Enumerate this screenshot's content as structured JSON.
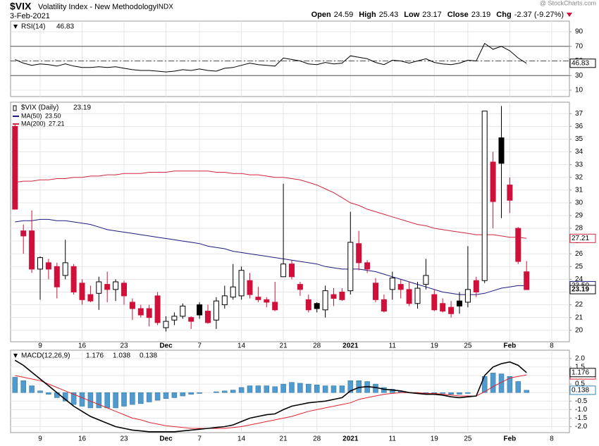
{
  "header": {
    "symbol": "$VIX",
    "name": "Volatility Index - New Methodology",
    "exchange": "INDX",
    "date": "3-Feb-2021",
    "source": "@ StockCharts.com",
    "quote": [
      {
        "label": "Open",
        "value": "24.59"
      },
      {
        "label": "High",
        "value": "25.43"
      },
      {
        "label": "Low",
        "value": "23.17"
      },
      {
        "label": "Close",
        "value": "23.19"
      },
      {
        "label": "Chg",
        "value": "-2.37 (-9.27%)"
      }
    ]
  },
  "chart_data": [
    {
      "type": "line",
      "title": "RSI(14)",
      "last": "46.83",
      "color": "#000000",
      "ylim": [
        1.3,
        104.5
      ],
      "yticks": [
        10,
        30,
        50,
        70,
        90
      ],
      "levels": [
        30,
        70
      ],
      "midline": 50,
      "values": [
        52,
        47,
        44,
        46,
        45,
        43,
        46,
        43,
        41,
        41,
        42,
        41,
        42,
        40,
        38,
        37,
        37,
        36,
        35,
        36,
        38,
        37,
        39,
        37,
        36,
        40,
        41,
        44,
        47,
        45,
        44,
        43,
        54,
        52,
        50,
        46,
        45,
        48,
        46,
        47,
        57,
        55,
        53,
        48,
        45,
        51,
        50,
        47,
        50,
        53,
        48,
        46,
        45,
        47,
        51,
        50,
        74,
        66,
        70,
        64,
        54,
        46.83,
        null,
        null,
        null
      ]
    },
    {
      "type": "candlestick",
      "title": "$VIX (Daily)",
      "last": "23.19",
      "colors": {
        "up": "#000000",
        "down": "#d0103a"
      },
      "ylim": [
        19.1,
        37.9
      ],
      "yticks": [
        20,
        21,
        22,
        23,
        24,
        25,
        26,
        27,
        28,
        29,
        30,
        31,
        32,
        33,
        34,
        35,
        36,
        37
      ],
      "categories": [
        null,
        null,
        null,
        "9",
        null,
        null,
        null,
        null,
        "16",
        null,
        null,
        null,
        null,
        "23",
        null,
        null,
        null,
        null,
        "Dec",
        null,
        null,
        null,
        "7",
        null,
        null,
        null,
        null,
        "14",
        null,
        null,
        null,
        null,
        "21",
        null,
        null,
        null,
        "28",
        null,
        null,
        null,
        "2021",
        null,
        null,
        null,
        null,
        "11",
        null,
        null,
        null,
        null,
        "19",
        null,
        null,
        null,
        "25",
        null,
        null,
        null,
        null,
        "Feb",
        null,
        null,
        null,
        null,
        "8"
      ],
      "open": [
        36.0,
        27.8,
        27.8,
        24.8,
        25.3,
        25.0,
        24.3,
        25.0,
        23.7,
        22.8,
        22.9,
        23.6,
        23.2,
        23.7,
        22.2,
        21.7,
        21.7,
        22.7,
        20.2,
        20.8,
        21.1,
        21.0,
        22.0,
        21.5,
        20.8,
        22.0,
        22.6,
        22.7,
        23.9,
        22.6,
        22.4,
        22.2,
        24.2,
        25.2,
        23.6,
        22.4,
        22.1,
        21.6,
        22.8,
        23.0,
        23.1,
        26.8,
        25.3,
        23.7,
        22.4,
        23.2,
        23.6,
        23.2,
        22.1,
        23.6,
        22.8,
        22.1,
        21.8,
        22.3,
        22.2,
        23.9,
        23.9,
        33.2,
        35.1,
        31.4,
        28.0,
        24.59,
        null,
        null,
        null
      ],
      "high": [
        36.2,
        28.3,
        29.4,
        25.8,
        25.6,
        25.3,
        27.1,
        25.2,
        24.0,
        23.5,
        24.2,
        24.6,
        24.0,
        23.9,
        22.5,
        22.0,
        22.0,
        23.0,
        21.1,
        21.4,
        22.1,
        21.1,
        22.2,
        22.0,
        22.6,
        23.5,
        25.2,
        25.0,
        24.5,
        23.4,
        22.6,
        23.8,
        31.5,
        25.5,
        23.8,
        22.8,
        22.2,
        23.5,
        23.3,
        23.3,
        29.3,
        27.8,
        25.5,
        24.1,
        22.8,
        24.6,
        24.0,
        23.8,
        23.8,
        25.6,
        23.2,
        22.5,
        22.3,
        23.0,
        26.6,
        24.2,
        37.2,
        34.0,
        37.6,
        32.0,
        28.1,
        25.43,
        null,
        null,
        null
      ],
      "low": [
        29.5,
        26.0,
        24.5,
        22.4,
        24.0,
        22.5,
        24.0,
        22.8,
        22.0,
        22.2,
        21.6,
        22.2,
        22.3,
        22.0,
        20.8,
        21.0,
        20.3,
        20.4,
        19.9,
        20.4,
        20.9,
        20.1,
        20.9,
        20.5,
        20.1,
        21.7,
        22.4,
        22.4,
        22.5,
        22.2,
        21.8,
        21.5,
        24.2,
        24.0,
        22.7,
        21.4,
        21.4,
        21.0,
        21.9,
        22.3,
        22.8,
        24.7,
        24.5,
        22.2,
        21.4,
        22.4,
        22.5,
        21.9,
        21.7,
        23.2,
        21.5,
        21.4,
        21.0,
        21.3,
        21.8,
        22.6,
        23.7,
        28.0,
        28.8,
        29.2,
        25.2,
        23.17,
        null,
        null,
        null
      ],
      "close": [
        29.5,
        27.4,
        24.8,
        25.7,
        24.8,
        23.4,
        25.3,
        23.0,
        22.4,
        22.3,
        23.8,
        23.2,
        23.8,
        22.7,
        21.7,
        21.2,
        21.0,
        20.6,
        20.7,
        21.1,
        21.9,
        20.7,
        21.2,
        20.6,
        22.3,
        22.7,
        23.4,
        24.7,
        22.8,
        22.4,
        22.2,
        21.6,
        25.2,
        24.2,
        23.2,
        21.6,
        21.7,
        23.1,
        22.5,
        22.4,
        26.9,
        25.3,
        24.8,
        22.4,
        21.5,
        24.1,
        23.2,
        22.1,
        23.3,
        24.3,
        21.6,
        21.5,
        21.3,
        21.9,
        23.2,
        23.0,
        37.2,
        30.1,
        33.1,
        30.2,
        25.4,
        23.19,
        null,
        null,
        null
      ],
      "series": [
        {
          "name": "MA(50)",
          "last": "23.50",
          "color": "#1a1a80",
          "values": [
            28.5,
            28.6,
            28.6,
            28.7,
            28.7,
            28.6,
            28.6,
            28.5,
            28.4,
            28.3,
            28.1,
            27.9,
            27.8,
            27.7,
            27.6,
            27.5,
            27.4,
            27.3,
            27.2,
            27.1,
            27.0,
            26.9,
            26.8,
            26.6,
            26.5,
            26.4,
            26.2,
            26.1,
            26.0,
            25.9,
            25.8,
            25.7,
            25.6,
            25.5,
            25.4,
            25.3,
            25.2,
            25.0,
            24.9,
            24.8,
            24.8,
            24.8,
            24.7,
            24.6,
            24.4,
            24.2,
            24.0,
            23.8,
            23.6,
            23.4,
            23.2,
            23.0,
            22.9,
            22.8,
            22.8,
            22.8,
            22.9,
            23.1,
            23.3,
            23.4,
            23.5,
            23.5,
            null,
            null,
            null
          ]
        },
        {
          "name": "MA(200)",
          "last": "27.21",
          "color": "#d0263f",
          "values": [
            31.6,
            31.7,
            31.7,
            31.8,
            31.8,
            31.9,
            31.9,
            32.0,
            32.0,
            32.1,
            32.1,
            32.2,
            32.2,
            32.3,
            32.3,
            32.3,
            32.4,
            32.4,
            32.4,
            32.5,
            32.5,
            32.5,
            32.5,
            32.5,
            32.4,
            32.4,
            32.3,
            32.3,
            32.2,
            32.2,
            32.1,
            32.0,
            32.0,
            31.9,
            31.8,
            31.6,
            31.4,
            31.1,
            30.8,
            30.4,
            30.0,
            29.8,
            29.5,
            29.3,
            29.1,
            28.9,
            28.7,
            28.5,
            28.3,
            28.2,
            28.0,
            27.9,
            27.8,
            27.7,
            27.6,
            27.5,
            27.5,
            27.5,
            27.4,
            27.3,
            27.3,
            27.21,
            null,
            null,
            null
          ]
        }
      ]
    },
    {
      "type": "macd",
      "title": "MACD(12,26,9)",
      "ylim": [
        -2.35,
        2.49
      ],
      "yticks": [
        {
          "value": 2,
          "label": "2.0"
        },
        {
          "value": 1.5,
          "label": "1.5"
        },
        {
          "value": 1,
          "label": "1.0"
        },
        {
          "value": 0.5,
          "label": "0.5"
        },
        {
          "value": 0,
          "label": "0.0"
        },
        {
          "value": -0.5,
          "label": "-0.5"
        },
        {
          "value": -1,
          "label": "-1.0"
        },
        {
          "value": -1.5,
          "label": "-1.5"
        },
        {
          "value": -2,
          "label": "-2.0"
        }
      ],
      "series": [
        {
          "name": "MACD",
          "last": "1.176",
          "color": "#000000",
          "values": [
            1.9,
            1.6,
            1.2,
            0.8,
            0.4,
            0.0,
            -0.4,
            -0.8,
            -1.1,
            -1.4,
            -1.6,
            -1.8,
            -2.0,
            -2.1,
            -2.2,
            -2.25,
            -2.3,
            -2.3,
            -2.3,
            -2.3,
            -2.25,
            -2.2,
            -2.15,
            -2.1,
            -2.05,
            -2.0,
            -1.9,
            -1.7,
            -1.5,
            -1.4,
            -1.3,
            -1.25,
            -1.0,
            -0.8,
            -0.7,
            -0.6,
            -0.55,
            -0.5,
            -0.4,
            -0.3,
            0.1,
            0.3,
            0.35,
            0.3,
            0.2,
            0.15,
            0.1,
            0.0,
            -0.05,
            -0.1,
            -0.1,
            -0.15,
            -0.25,
            -0.3,
            -0.25,
            -0.2,
            1.0,
            1.5,
            1.7,
            1.8,
            1.6,
            1.176,
            null,
            null,
            null
          ]
        },
        {
          "name": "Signal",
          "last": "1.038",
          "color": "#e0242c",
          "values": [
            1.0,
            0.9,
            0.8,
            0.7,
            0.5,
            0.3,
            0.1,
            -0.1,
            -0.3,
            -0.5,
            -0.7,
            -0.9,
            -1.1,
            -1.3,
            -1.5,
            -1.6,
            -1.75,
            -1.85,
            -1.95,
            -2.0,
            -2.05,
            -2.1,
            -2.1,
            -2.1,
            -2.1,
            -2.1,
            -2.05,
            -2.0,
            -1.9,
            -1.8,
            -1.7,
            -1.6,
            -1.5,
            -1.4,
            -1.25,
            -1.1,
            -1.0,
            -0.9,
            -0.8,
            -0.7,
            -0.6,
            -0.4,
            -0.3,
            -0.2,
            -0.1,
            -0.05,
            0.0,
            0.0,
            0.0,
            -0.05,
            -0.05,
            -0.1,
            -0.15,
            -0.2,
            -0.2,
            -0.2,
            0.05,
            0.35,
            0.6,
            0.85,
            0.95,
            1.038,
            null,
            null,
            null
          ]
        },
        {
          "name": "Histogram",
          "last": "0.138",
          "color": "#4f9bd0",
          "values": [
            0.9,
            0.7,
            0.4,
            0.1,
            -0.1,
            -0.3,
            -0.5,
            -0.7,
            -0.8,
            -0.9,
            -0.9,
            -0.9,
            -0.9,
            -0.8,
            -0.7,
            -0.65,
            -0.55,
            -0.45,
            -0.35,
            -0.3,
            -0.2,
            -0.1,
            -0.05,
            0.0,
            0.05,
            0.1,
            0.15,
            0.3,
            0.4,
            0.4,
            0.4,
            0.35,
            0.5,
            0.6,
            0.55,
            0.5,
            0.45,
            0.4,
            0.4,
            0.4,
            0.7,
            0.7,
            0.65,
            0.5,
            0.3,
            0.2,
            0.1,
            0.0,
            -0.05,
            -0.05,
            -0.05,
            -0.05,
            -0.1,
            -0.1,
            -0.05,
            0.0,
            0.95,
            1.15,
            1.1,
            0.95,
            0.65,
            0.138,
            null,
            null,
            null
          ]
        }
      ]
    }
  ]
}
